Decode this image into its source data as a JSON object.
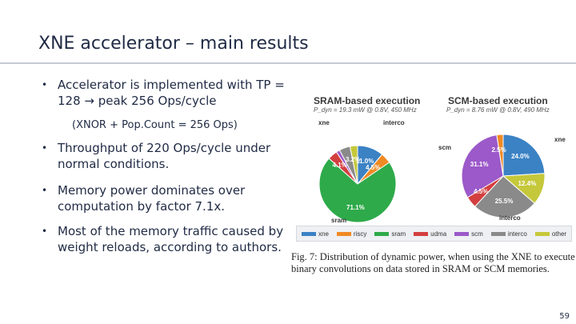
{
  "slide": {
    "title": "XNE accelerator – main results",
    "bullets": [
      "Accelerator is implemented with TP = 128 → peak 256 Ops/cycle",
      "Throughput of 220 Ops/cycle under normal conditions.",
      "Memory power dominates over computation by factor 7.1x.",
      "Most of the memory traffic caused by weight reloads, according to authors."
    ],
    "bullet_marker": "•",
    "sub_bullet": "(XNOR + Pop.Count = 256 Ops)",
    "page_number": "59"
  },
  "figure": {
    "caption": "Fig. 7: Distribution of dynamic power, when using the XNE to execute binary convolutions on data stored in SRAM or SCM memories.",
    "colors": {
      "xne": "#3b82c4",
      "riscy": "#f08a24",
      "sram": "#2eaa4a",
      "udma": "#d33f3f",
      "scm": "#9b59c9",
      "interco": "#8a8a8a",
      "other": "#c5c83a"
    },
    "legend": [
      "xne",
      "riscy",
      "sram",
      "udma",
      "scm",
      "interco",
      "other"
    ]
  },
  "chart_data": [
    {
      "type": "pie",
      "title": "SRAM-based execution",
      "subtitle": "P_dyn = 19.3 mW @ 0.8V, 450 MHz",
      "slices": [
        {
          "name": "xne",
          "value": 11.0,
          "label": "11.0%"
        },
        {
          "name": "riscy",
          "value": 4.5,
          "label": "4.5%"
        },
        {
          "name": "sram",
          "value": 71.1,
          "label": "71.1%"
        },
        {
          "name": "udma",
          "value": 4.1,
          "label": "4.1%"
        },
        {
          "name": "scm",
          "value": 1.5,
          "label": ""
        },
        {
          "name": "interco",
          "value": 4.6,
          "label": ""
        },
        {
          "name": "other",
          "value": 3.2,
          "label": "3.2%"
        }
      ],
      "outside_labels": [
        "xne",
        "interco",
        "sram"
      ]
    },
    {
      "type": "pie",
      "title": "SCM-based execution",
      "subtitle": "P_dyn = 8.76 mW @ 0.8V, 490 MHz",
      "slices": [
        {
          "name": "xne",
          "value": 24.0,
          "label": "24.0%"
        },
        {
          "name": "other",
          "value": 12.4,
          "label": "12.4%"
        },
        {
          "name": "interco",
          "value": 25.5,
          "label": "25.5%"
        },
        {
          "name": "udma",
          "value": 4.5,
          "label": "4.5%"
        },
        {
          "name": "scm",
          "value": 31.1,
          "label": "31.1%"
        },
        {
          "name": "riscy",
          "value": 2.5,
          "label": "2.5%"
        }
      ],
      "outside_labels": [
        "xne",
        "scm",
        "interco"
      ]
    }
  ]
}
